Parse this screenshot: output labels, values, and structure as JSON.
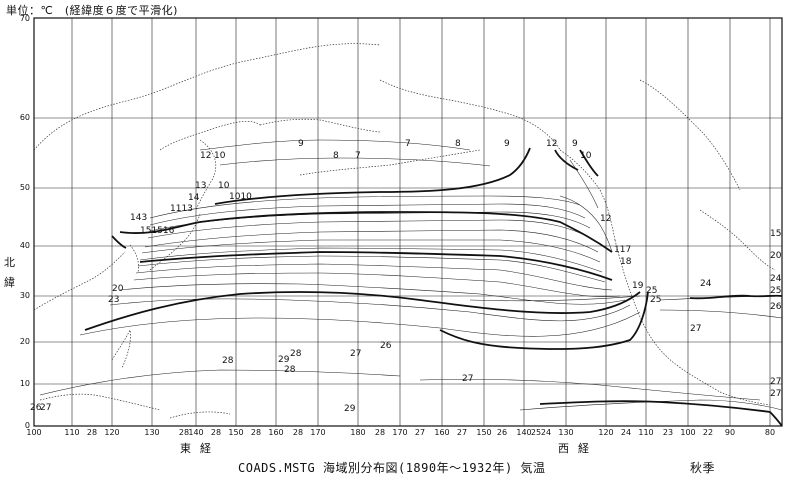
{
  "unit_note": "単位：℃　(経緯度６度で平滑化)",
  "caption": {
    "title": "COADS.MSTG 海域別分布図(1890年～1932年) 気温",
    "season": "秋季"
  },
  "axis_words": {
    "north_1": "北",
    "north_2": "緯",
    "east_1": "東",
    "east_2": "経",
    "west_1": "西",
    "west_2": "経"
  },
  "lat_ticks": [
    "70",
    "60",
    "50",
    "40",
    "30",
    "20",
    "10",
    "0"
  ],
  "lon_ticks": [
    "100",
    "110",
    "120",
    "130",
    "140",
    "150",
    "160",
    "170",
    "180",
    "170",
    "160",
    "150",
    "140",
    "130",
    "120",
    "110",
    "100",
    "90",
    "80"
  ],
  "isotherm_labels": [
    {
      "id": "l01",
      "text": "9"
    },
    {
      "id": "l02",
      "text": "8"
    },
    {
      "id": "l03",
      "text": "7"
    },
    {
      "id": "l04",
      "text": "7"
    },
    {
      "id": "l05",
      "text": "8"
    },
    {
      "id": "l06",
      "text": "9"
    },
    {
      "id": "l07",
      "text": "12"
    },
    {
      "id": "l08",
      "text": "9"
    },
    {
      "id": "l09",
      "text": "10"
    },
    {
      "id": "l10",
      "text": "12"
    },
    {
      "id": "l11",
      "text": "10"
    },
    {
      "id": "l12",
      "text": "13"
    },
    {
      "id": "l13",
      "text": "10"
    },
    {
      "id": "l14",
      "text": "14"
    },
    {
      "id": "l15",
      "text": "1010"
    },
    {
      "id": "l16",
      "text": "1113"
    },
    {
      "id": "l17",
      "text": "143"
    },
    {
      "id": "l18",
      "text": "151516"
    },
    {
      "id": "l19",
      "text": "12"
    },
    {
      "id": "l20",
      "text": "117"
    },
    {
      "id": "l21",
      "text": "18"
    },
    {
      "id": "l22",
      "text": "20"
    },
    {
      "id": "l23",
      "text": "23"
    },
    {
      "id": "l24",
      "text": "19"
    },
    {
      "id": "l25",
      "text": "25"
    },
    {
      "id": "l26",
      "text": "24"
    },
    {
      "id": "l27",
      "text": "15"
    },
    {
      "id": "l28",
      "text": "20"
    },
    {
      "id": "l29",
      "text": "24"
    },
    {
      "id": "l30",
      "text": "25"
    },
    {
      "id": "l31",
      "text": "26"
    },
    {
      "id": "l32",
      "text": "27"
    },
    {
      "id": "l33",
      "text": "26"
    },
    {
      "id": "l34",
      "text": "27"
    },
    {
      "id": "l35",
      "text": "28"
    },
    {
      "id": "l36",
      "text": "29"
    },
    {
      "id": "l37",
      "text": "28"
    },
    {
      "id": "l38",
      "text": "28"
    },
    {
      "id": "l39",
      "text": "27"
    },
    {
      "id": "l40",
      "text": "26"
    },
    {
      "id": "l41",
      "text": "27"
    },
    {
      "id": "l42",
      "text": "29"
    },
    {
      "id": "l43",
      "text": "27"
    },
    {
      "id": "l44",
      "text": "27"
    },
    {
      "id": "l45",
      "text": "25"
    }
  ],
  "bottom_values": [
    {
      "id": "b01",
      "text": "28"
    },
    {
      "id": "b02",
      "text": "28"
    },
    {
      "id": "b03",
      "text": "28"
    },
    {
      "id": "b04",
      "text": "28"
    },
    {
      "id": "b05",
      "text": "28"
    },
    {
      "id": "b06",
      "text": "28"
    },
    {
      "id": "b07",
      "text": "27"
    },
    {
      "id": "b08",
      "text": "27"
    },
    {
      "id": "b09",
      "text": "26"
    },
    {
      "id": "b10",
      "text": "25"
    },
    {
      "id": "b11",
      "text": "24"
    },
    {
      "id": "b12",
      "text": "24"
    },
    {
      "id": "b13",
      "text": "23"
    },
    {
      "id": "b14",
      "text": "22"
    }
  ]
}
